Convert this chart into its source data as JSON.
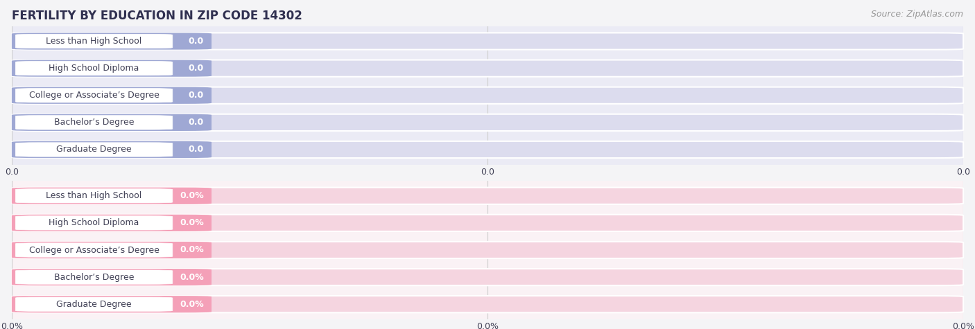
{
  "title": "FERTILITY BY EDUCATION IN ZIP CODE 14302",
  "source": "Source: ZipAtlas.com",
  "categories": [
    "Less than High School",
    "High School Diploma",
    "College or Associate’s Degree",
    "Bachelor’s Degree",
    "Graduate Degree"
  ],
  "values_top": [
    0.0,
    0.0,
    0.0,
    0.0,
    0.0
  ],
  "values_bottom": [
    0.0,
    0.0,
    0.0,
    0.0,
    0.0
  ],
  "labels_top": [
    "0.0",
    "0.0",
    "0.0",
    "0.0",
    "0.0"
  ],
  "labels_bottom": [
    "0.0%",
    "0.0%",
    "0.0%",
    "0.0%",
    "0.0%"
  ],
  "bar_color_top": "#9fa8d4",
  "bar_color_bottom": "#f4a0b8",
  "bar_bg_color_top": "#dcdcee",
  "bar_bg_color_bottom": "#f5d5e0",
  "text_color_dark": "#404055",
  "text_color_white": "#ffffff",
  "title_color": "#303050",
  "source_color": "#999999",
  "grid_color": "#cccccc",
  "bg_color": "#f4f4f6",
  "panel_bg_top": "#ebebf5",
  "panel_bg_bottom": "#faf2f5",
  "row_bg_top": "#f0f0f8",
  "row_bg_bottom": "#fdf6f8",
  "xtick_labels_top": [
    "0.0",
    "0.0",
    "0.0"
  ],
  "xtick_labels_bottom": [
    "0.0%",
    "0.0%",
    "0.0%"
  ],
  "title_fontsize": 12,
  "source_fontsize": 9,
  "bar_label_fontsize": 9,
  "cat_label_fontsize": 9,
  "tick_fontsize": 9
}
